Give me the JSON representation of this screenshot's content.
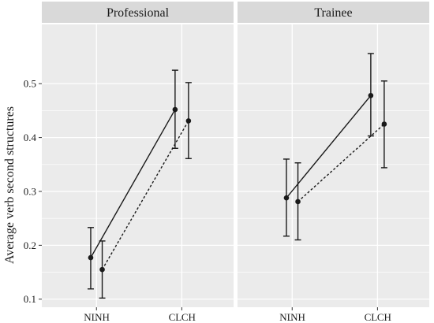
{
  "chart_data": {
    "type": "line",
    "facets": [
      "Professional",
      "Trainee"
    ],
    "ylabel": "Average verb second structures",
    "xlabel": "",
    "ylim": [
      0.085,
      0.61
    ],
    "yticks": [
      0.1,
      0.2,
      0.3,
      0.4,
      0.5
    ],
    "ytick_labels": [
      "0.1",
      "0.2",
      "0.3",
      "0.4",
      "0.5"
    ],
    "x_groups": [
      {
        "name": "N",
        "labels": [
          "NL",
          "NH"
        ]
      },
      {
        "name": "C",
        "labels": [
          "CL",
          "CH"
        ]
      }
    ],
    "series": [
      {
        "linestyle": "solid",
        "panels": {
          "Professional": [
            {
              "x": "NL",
              "y": 0.177,
              "lower": 0.119,
              "upper": 0.233
            },
            {
              "x": "CL",
              "y": 0.452,
              "lower": 0.38,
              "upper": 0.525
            }
          ],
          "Trainee": [
            {
              "x": "NL",
              "y": 0.288,
              "lower": 0.217,
              "upper": 0.36
            },
            {
              "x": "CL",
              "y": 0.478,
              "lower": 0.403,
              "upper": 0.556
            }
          ]
        }
      },
      {
        "linestyle": "dotted",
        "panels": {
          "Professional": [
            {
              "x": "NH",
              "y": 0.155,
              "lower": 0.102,
              "upper": 0.208
            },
            {
              "x": "CH",
              "y": 0.431,
              "lower": 0.361,
              "upper": 0.502
            }
          ],
          "Trainee": [
            {
              "x": "NH",
              "y": 0.281,
              "lower": 0.21,
              "upper": 0.353
            },
            {
              "x": "CH",
              "y": 0.425,
              "lower": 0.344,
              "upper": 0.505
            }
          ]
        }
      }
    ],
    "colors": {
      "panel_bg": "#ebebeb",
      "strip_bg": "#d9d9d9",
      "grid": "#ffffff",
      "ink": "#1a1a1a"
    },
    "grid": true,
    "legend": "none"
  }
}
